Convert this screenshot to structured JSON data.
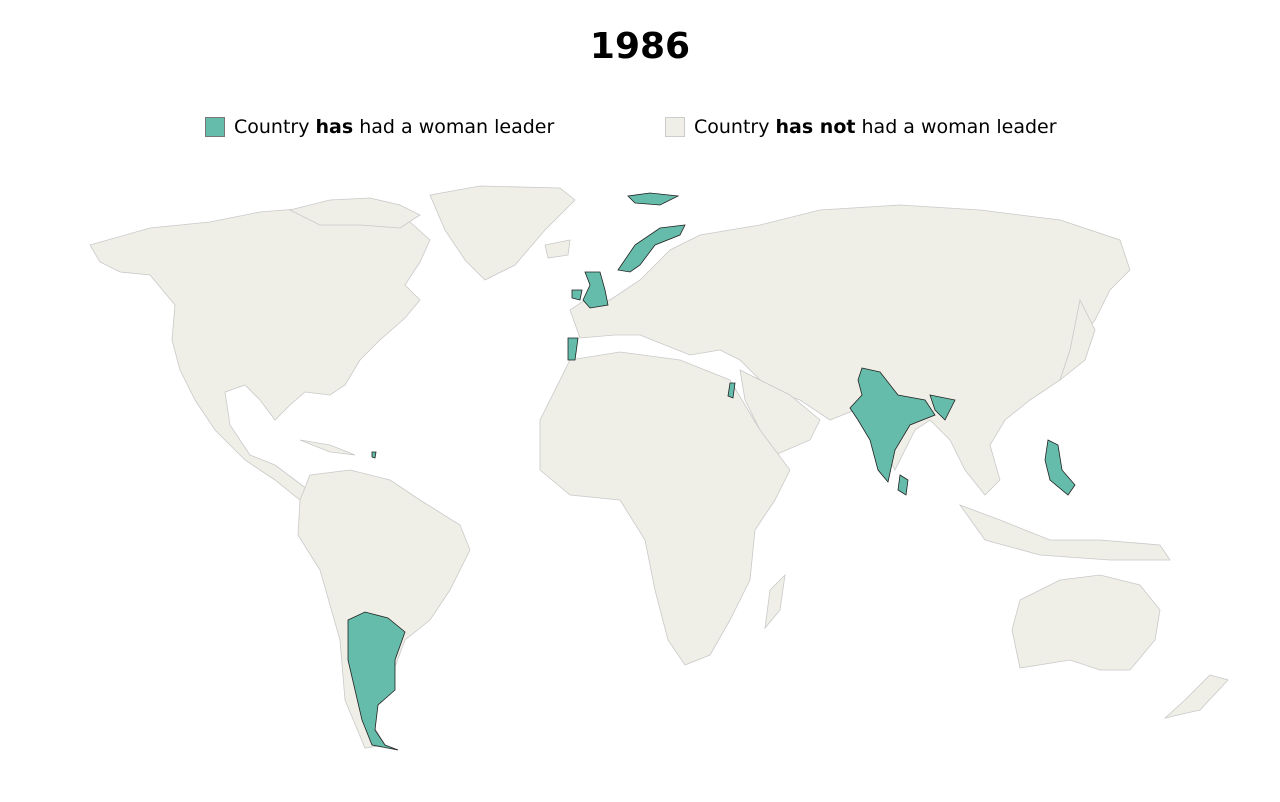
{
  "title": "1986",
  "legend": {
    "has": {
      "prefix": "Country ",
      "bold": "has",
      "suffix": " had a woman leader",
      "color": "#66bcaa"
    },
    "has_not": {
      "prefix": "Country ",
      "bold": "has not",
      "suffix": " had a woman leader",
      "color": "#efefe7"
    }
  },
  "colors": {
    "highlight": "#66bcaa",
    "land": "#efefe7",
    "border": "#c9c9c9"
  }
}
